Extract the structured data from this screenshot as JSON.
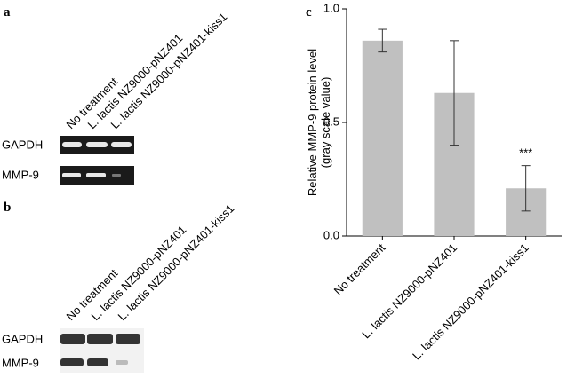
{
  "panels": {
    "a": {
      "label": "a",
      "lanes": [
        "No treatment",
        "L. lactis NZ9000-pNZ401",
        "L. lactis NZ9000-pNZ401-kiss1"
      ],
      "rows": [
        "GAPDH",
        "MMP-9"
      ]
    },
    "b": {
      "label": "b",
      "lanes": [
        "No treatment",
        "L. lactis NZ9000-pNZ401",
        "L. lactis NZ9000-pNZ401-kiss1"
      ],
      "rows": [
        "GAPDH",
        "MMP-9"
      ]
    }
  },
  "chart_data": {
    "type": "bar",
    "panel_label": "c",
    "y_label": [
      "Relative MMP-9 protein level",
      "(gray scale value)"
    ],
    "categories": [
      "No treatment",
      "L. lactis NZ9000-pNZ401",
      "L. lactis NZ9000-pNZ401-kiss1"
    ],
    "values": [
      0.86,
      0.63,
      0.21
    ],
    "errors": [
      0.05,
      0.23,
      0.1
    ],
    "value_labels": [
      null,
      null,
      "***"
    ],
    "color": "#c0c0c0",
    "ylim": [
      0,
      1
    ],
    "yticks": [
      {
        "value": 0,
        "label": "0.0"
      },
      0.5,
      {
        "value": 1,
        "label": "1.0"
      }
    ]
  }
}
